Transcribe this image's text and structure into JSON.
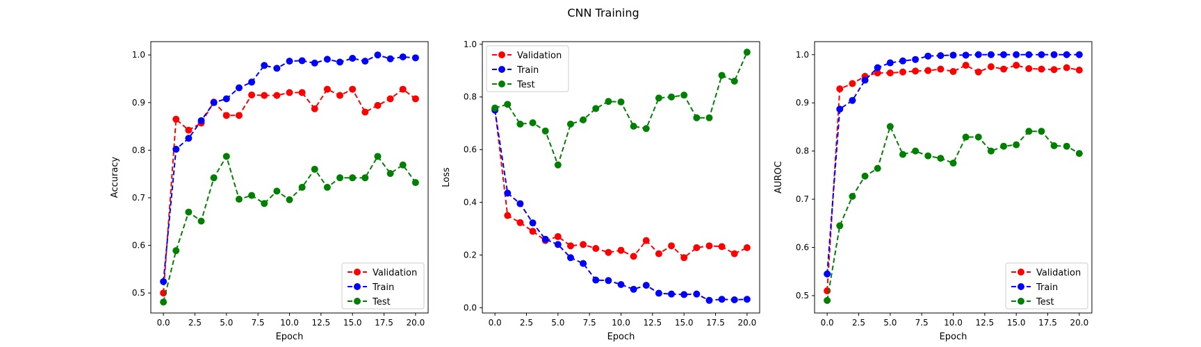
{
  "figure": {
    "title": "CNN Training"
  },
  "chart_data": [
    {
      "type": "line",
      "title": "",
      "xlabel": "Epoch",
      "ylabel": "Accuracy",
      "xlim": [
        -1.0,
        21.0
      ],
      "ylim": [
        0.458,
        1.028
      ],
      "x_ticks": [
        0.0,
        2.5,
        5.0,
        7.5,
        10.0,
        12.5,
        15.0,
        17.5,
        20.0
      ],
      "x_tick_labels": [
        "0.0",
        "2.5",
        "5.0",
        "7.5",
        "10.0",
        "12.5",
        "15.0",
        "17.5",
        "20.0"
      ],
      "y_ticks": [
        0.5,
        0.6,
        0.7,
        0.8,
        0.9,
        1.0
      ],
      "y_tick_labels": [
        "0.5",
        "0.6",
        "0.7",
        "0.8",
        "0.9",
        "1.0"
      ],
      "grid": false,
      "legend": "lower-right",
      "x": [
        0,
        1,
        2,
        3,
        4,
        5,
        6,
        7,
        8,
        9,
        10,
        11,
        12,
        13,
        14,
        15,
        16,
        17,
        18,
        19,
        20
      ],
      "series": [
        {
          "name": "Validation",
          "color": "#ff0000",
          "values": [
            0.5,
            0.865,
            0.842,
            0.857,
            0.901,
            0.873,
            0.873,
            0.916,
            0.915,
            0.915,
            0.921,
            0.921,
            0.887,
            0.928,
            0.915,
            0.928,
            0.88,
            0.894,
            0.908,
            0.928,
            0.908
          ]
        },
        {
          "name": "Train",
          "color": "#0000ff",
          "values": [
            0.524,
            0.802,
            0.825,
            0.862,
            0.9,
            0.908,
            0.931,
            0.943,
            0.978,
            0.972,
            0.987,
            0.988,
            0.983,
            0.991,
            0.985,
            0.993,
            0.987,
            1.0,
            0.992,
            0.996,
            0.994
          ]
        },
        {
          "name": "Test",
          "color": "#008000",
          "values": [
            0.481,
            0.589,
            0.67,
            0.651,
            0.742,
            0.787,
            0.697,
            0.705,
            0.688,
            0.714,
            0.696,
            0.722,
            0.76,
            0.722,
            0.742,
            0.742,
            0.742,
            0.787,
            0.751,
            0.769,
            0.732
          ]
        }
      ]
    },
    {
      "type": "line",
      "title": "",
      "xlabel": "Epoch",
      "ylabel": "Loss",
      "xlim": [
        -1.0,
        21.0
      ],
      "ylim": [
        -0.02,
        1.01
      ],
      "x_ticks": [
        0.0,
        2.5,
        5.0,
        7.5,
        10.0,
        12.5,
        15.0,
        17.5,
        20.0
      ],
      "x_tick_labels": [
        "0.0",
        "2.5",
        "5.0",
        "7.5",
        "10.0",
        "12.5",
        "15.0",
        "17.5",
        "20.0"
      ],
      "y_ticks": [
        0.0,
        0.2,
        0.4,
        0.6,
        0.8,
        1.0
      ],
      "y_tick_labels": [
        "0.0",
        "0.2",
        "0.4",
        "0.6",
        "0.8",
        "1.0"
      ],
      "grid": false,
      "legend": "upper-left",
      "x": [
        0,
        1,
        2,
        3,
        4,
        5,
        6,
        7,
        8,
        9,
        10,
        11,
        12,
        13,
        14,
        15,
        16,
        17,
        18,
        19,
        20
      ],
      "series": [
        {
          "name": "Validation",
          "color": "#ff0000",
          "values": [
            0.755,
            0.35,
            0.323,
            0.29,
            0.255,
            0.27,
            0.235,
            0.24,
            0.225,
            0.21,
            0.218,
            0.195,
            0.255,
            0.205,
            0.235,
            0.19,
            0.228,
            0.235,
            0.232,
            0.205,
            0.228
          ]
        },
        {
          "name": "Train",
          "color": "#0000ff",
          "values": [
            0.75,
            0.435,
            0.395,
            0.322,
            0.26,
            0.24,
            0.19,
            0.168,
            0.105,
            0.103,
            0.088,
            0.07,
            0.085,
            0.055,
            0.052,
            0.05,
            0.052,
            0.028,
            0.032,
            0.03,
            0.032
          ]
        },
        {
          "name": "Test",
          "color": "#008000",
          "values": [
            0.758,
            0.772,
            0.697,
            0.702,
            0.671,
            0.542,
            0.697,
            0.713,
            0.756,
            0.783,
            0.781,
            0.689,
            0.68,
            0.796,
            0.8,
            0.807,
            0.721,
            0.721,
            0.882,
            0.86,
            0.97
          ]
        }
      ]
    },
    {
      "type": "line",
      "title": "",
      "xlabel": "Epoch",
      "ylabel": "AUROC",
      "xlim": [
        -1.0,
        21.0
      ],
      "ylim": [
        0.464,
        1.027
      ],
      "x_ticks": [
        0.0,
        2.5,
        5.0,
        7.5,
        10.0,
        12.5,
        15.0,
        17.5,
        20.0
      ],
      "x_tick_labels": [
        "0.0",
        "2.5",
        "5.0",
        "7.5",
        "10.0",
        "12.5",
        "15.0",
        "17.5",
        "20.0"
      ],
      "y_ticks": [
        0.5,
        0.6,
        0.7,
        0.8,
        0.9,
        1.0
      ],
      "y_tick_labels": [
        "0.5",
        "0.6",
        "0.7",
        "0.8",
        "0.9",
        "1.0"
      ],
      "grid": false,
      "legend": "lower-right",
      "x": [
        0,
        1,
        2,
        3,
        4,
        5,
        6,
        7,
        8,
        9,
        10,
        11,
        12,
        13,
        14,
        15,
        16,
        17,
        18,
        19,
        20
      ],
      "series": [
        {
          "name": "Validation",
          "color": "#ff0000",
          "values": [
            0.51,
            0.929,
            0.94,
            0.955,
            0.962,
            0.962,
            0.964,
            0.966,
            0.967,
            0.97,
            0.965,
            0.978,
            0.964,
            0.975,
            0.97,
            0.978,
            0.971,
            0.97,
            0.969,
            0.973,
            0.968
          ]
        },
        {
          "name": "Train",
          "color": "#0000ff",
          "values": [
            0.545,
            0.887,
            0.905,
            0.947,
            0.973,
            0.983,
            0.987,
            0.99,
            0.997,
            0.998,
            0.999,
            0.999,
            1.0,
            1.0,
            1.0,
            1.0,
            1.0,
            1.0,
            1.0,
            1.0,
            1.0
          ]
        },
        {
          "name": "Test",
          "color": "#008000",
          "values": [
            0.49,
            0.645,
            0.706,
            0.748,
            0.764,
            0.851,
            0.793,
            0.8,
            0.79,
            0.785,
            0.775,
            0.829,
            0.829,
            0.8,
            0.81,
            0.813,
            0.841,
            0.841,
            0.811,
            0.81,
            0.795
          ]
        }
      ]
    }
  ]
}
